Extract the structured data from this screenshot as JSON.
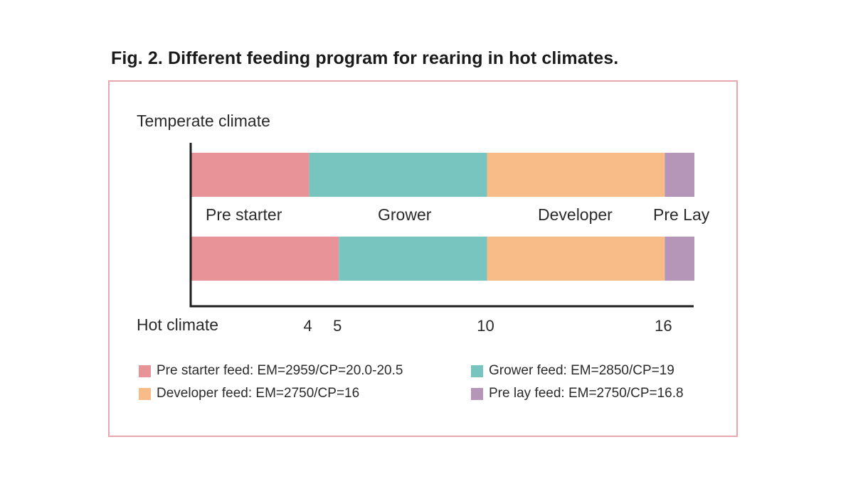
{
  "title": "Fig. 2. Different feeding program for rearing in hot climates.",
  "chart_data": {
    "type": "bar",
    "orientation": "horizontal",
    "stacked": true,
    "x_domain": [
      0,
      17
    ],
    "x_ticks": [
      4,
      5,
      10,
      16
    ],
    "rows": [
      {
        "label": "Temperate climate",
        "segments": [
          {
            "phase": "Pre starter",
            "start": 0,
            "end": 4
          },
          {
            "phase": "Grower",
            "start": 4,
            "end": 10
          },
          {
            "phase": "Developer",
            "start": 10,
            "end": 16
          },
          {
            "phase": "Pre Lay",
            "start": 16,
            "end": 17
          }
        ]
      },
      {
        "label": "Hot climate",
        "segments": [
          {
            "phase": "Pre starter",
            "start": 0,
            "end": 5
          },
          {
            "phase": "Grower",
            "start": 5,
            "end": 10
          },
          {
            "phase": "Developer",
            "start": 10,
            "end": 16
          },
          {
            "phase": "Pre Lay",
            "start": 16,
            "end": 17
          }
        ]
      }
    ],
    "phase_labels": [
      "Pre starter",
      "Grower",
      "Developer",
      "Pre Lay"
    ],
    "colors": {
      "Pre starter": "#e89398",
      "Grower": "#78c4bf",
      "Developer": "#f8bc88",
      "Pre Lay": "#b596b8"
    },
    "legend": [
      {
        "text": "Pre starter feed: EM=2959/CP=20.0-20.5",
        "phase": "Pre starter"
      },
      {
        "text": "Grower feed: EM=2850/CP=19",
        "phase": "Grower"
      },
      {
        "text": "Developer feed: EM=2750/CP=16",
        "phase": "Developer"
      },
      {
        "text": "Pre lay feed: EM=2750/CP=16.8",
        "phase": "Pre Lay"
      }
    ],
    "legend_placement": "bottom",
    "grid": false
  }
}
